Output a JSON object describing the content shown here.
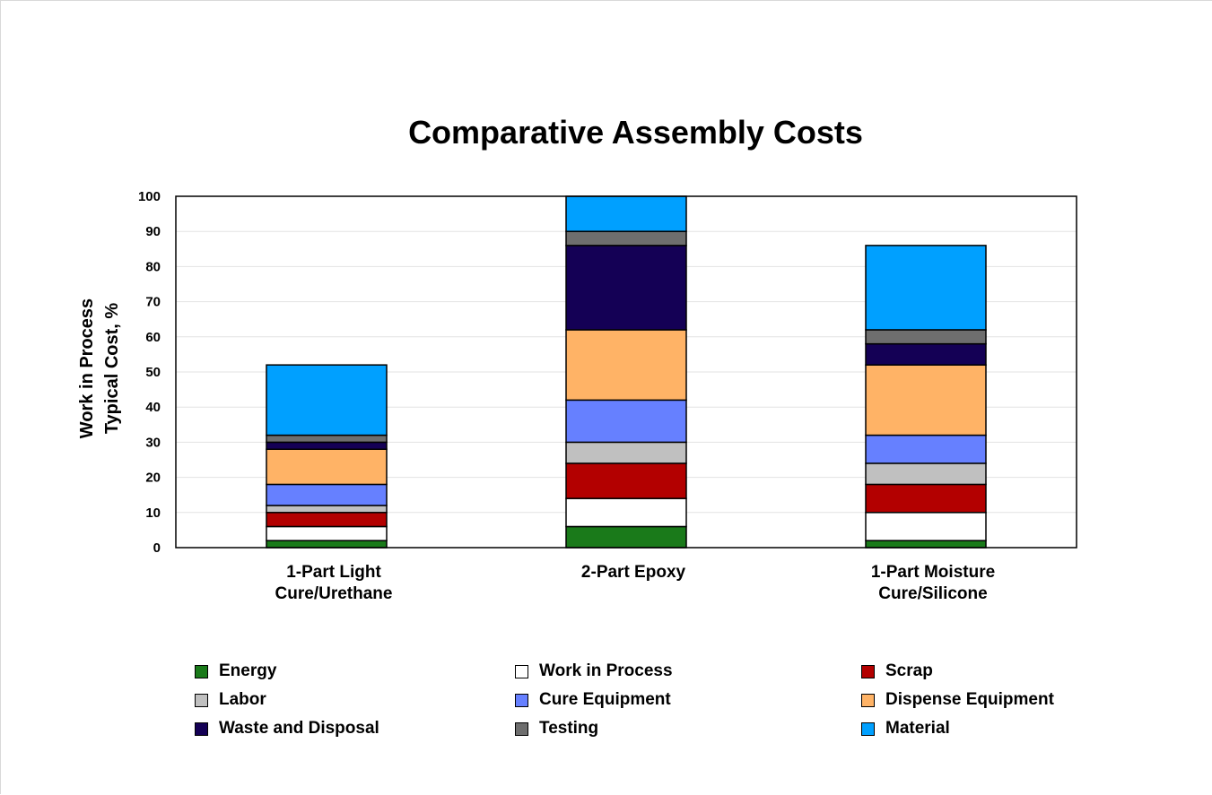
{
  "chart_data": {
    "type": "bar",
    "stacked": true,
    "title": "Comparative Assembly Costs",
    "ylabel": [
      "Work in Process",
      "Typical Cost, %"
    ],
    "xlabel": "",
    "ylim": [
      0,
      100
    ],
    "yticks": [
      "0",
      "10",
      "20",
      "30",
      "40",
      "50",
      "60",
      "70",
      "80",
      "90",
      "100"
    ],
    "grid": true,
    "legend_position": "bottom",
    "categories": [
      [
        "1-Part Light",
        "Cure/Urethane"
      ],
      [
        "2-Part Epoxy"
      ],
      [
        "1-Part Moisture",
        "Cure/Silicone"
      ]
    ],
    "series": [
      {
        "name": "Energy",
        "color": "#1a7a1a",
        "values": [
          2,
          6,
          2
        ]
      },
      {
        "name": "Work in Process",
        "color": "#ffffff",
        "values": [
          4,
          8,
          8
        ]
      },
      {
        "name": "Scrap",
        "color": "#b30000",
        "values": [
          4,
          10,
          8
        ]
      },
      {
        "name": "Labor",
        "color": "#c0c0c0",
        "values": [
          2,
          6,
          6
        ]
      },
      {
        "name": "Cure Equipment",
        "color": "#6680ff",
        "values": [
          6,
          12,
          8
        ]
      },
      {
        "name": "Dispense Equipment",
        "color": "#ffb366",
        "values": [
          10,
          20,
          20
        ]
      },
      {
        "name": "Waste and Disposal",
        "color": "#140055",
        "values": [
          2,
          24,
          6
        ]
      },
      {
        "name": "Testing",
        "color": "#6e6e6e",
        "values": [
          2,
          4,
          4
        ]
      },
      {
        "name": "Material",
        "color": "#00a0ff",
        "values": [
          20,
          10,
          24
        ]
      }
    ]
  }
}
